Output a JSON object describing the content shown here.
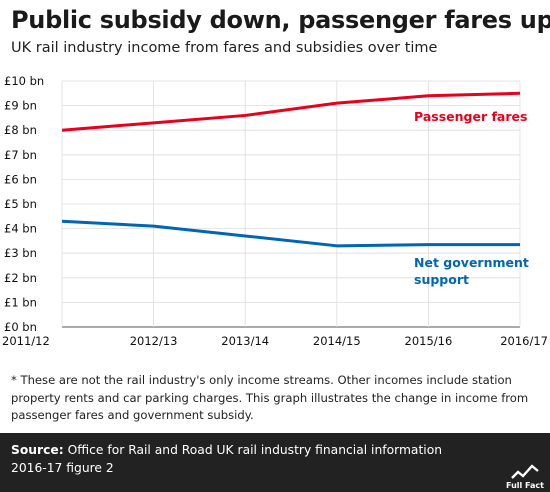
{
  "title": "Public subsidy down, passenger fares up",
  "subtitle": "UK rail industry income from fares and subsidies over time",
  "chart_data": {
    "type": "line",
    "x": [
      "2011/12",
      "2012/13",
      "2013/14",
      "2014/15",
      "2015/16",
      "2016/17"
    ],
    "y_ticks": [
      "£0 bn",
      "£1 bn",
      "£2 bn",
      "£3 bn",
      "£4 bn",
      "£5 bn",
      "£6 bn",
      "£7 bn",
      "£8 bn",
      "£9 bn",
      "£10 bn"
    ],
    "ylim": [
      0,
      10
    ],
    "grid": true,
    "series": [
      {
        "name": "Passenger fares",
        "color": "#e8001c",
        "values": [
          8.0,
          8.3,
          8.6,
          9.1,
          9.4,
          9.5
        ]
      },
      {
        "name": "Net government support",
        "color": "#0066b3",
        "values": [
          4.3,
          4.1,
          3.7,
          3.3,
          3.35,
          3.35
        ]
      }
    ]
  },
  "labels": {
    "fares": "Passenger fares",
    "support_line1": "Net government",
    "support_line2": "support"
  },
  "footnote": "* These are not the rail industry's only income streams. Other incomes include station property rents and car parking charges. This graph illustrates the change in income from passenger fares and government subsidy.",
  "source": {
    "label": "Source:",
    "text": " Office for Rail and Road UK rail industry financial information 2016-17 figure 2"
  },
  "logo": {
    "text": "Full Fact",
    "icon": "full-fact-logo-icon"
  }
}
